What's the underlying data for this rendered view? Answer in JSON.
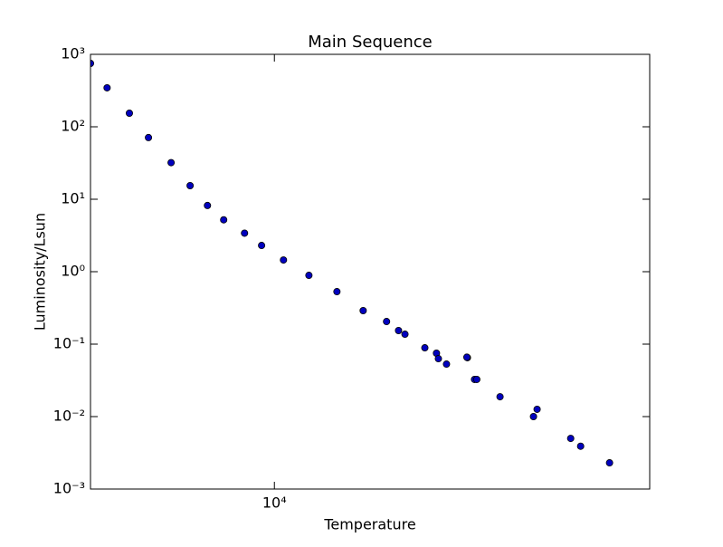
{
  "chart_data": {
    "type": "scatter",
    "title": "Main Sequence",
    "xlabel": "Temperature",
    "ylabel": "Luminosity/Lsun",
    "xscale": "log",
    "yscale": "log",
    "xlim": [
      21000,
      2200
    ],
    "ylim": [
      0.001,
      1000
    ],
    "xticks": [
      {
        "value": 10000,
        "label": "10⁴"
      }
    ],
    "yticks": [
      {
        "value": 0.001,
        "label": "10⁻³"
      },
      {
        "value": 0.01,
        "label": "10⁻²"
      },
      {
        "value": 0.1,
        "label": "10⁻¹"
      },
      {
        "value": 1,
        "label": "10⁰"
      },
      {
        "value": 10,
        "label": "10¹"
      },
      {
        "value": 100,
        "label": "10²"
      },
      {
        "value": 1000,
        "label": "10³"
      }
    ],
    "series": [
      {
        "color": "#0000bf",
        "x": [
          21000,
          19640,
          17950,
          16620,
          15170,
          14050,
          13100,
          12270,
          11280,
          10530,
          9640,
          8700,
          7770,
          6990,
          6360,
          6060,
          5905,
          5450,
          5200,
          5160,
          4994,
          4590,
          4600,
          4460,
          4420,
          4024,
          3516,
          3465,
          3026,
          2907,
          2587
        ],
        "values": [
          750,
          345,
          154,
          71,
          32,
          15.4,
          8.2,
          5.2,
          3.4,
          2.3,
          1.45,
          0.89,
          0.53,
          0.29,
          0.205,
          0.154,
          0.137,
          0.089,
          0.075,
          0.063,
          0.053,
          0.065,
          0.066,
          0.0326,
          0.0326,
          0.0188,
          0.01,
          0.0126,
          0.005,
          0.0039,
          0.0023
        ]
      }
    ]
  }
}
